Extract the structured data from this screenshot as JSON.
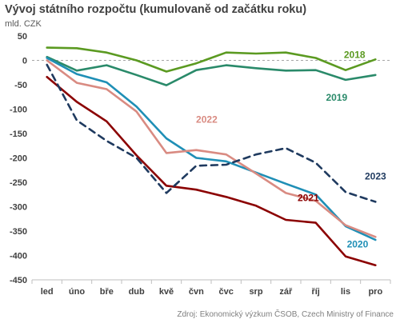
{
  "chart_data": {
    "type": "line",
    "title": "Vývoj státního rozpočtu (kumulovaně od začátku roku)",
    "subtitle": "mld. CZK",
    "source": "Zdroj: Ekonomický výzkum ČSOB, Czech Ministry of Finance",
    "categories": [
      "led",
      "úno",
      "bře",
      "dub",
      "kvě",
      "čvn",
      "čvc",
      "srp",
      "zář",
      "říj",
      "lis",
      "pro"
    ],
    "ylim": [
      -450,
      50
    ],
    "yticks": [
      50,
      0,
      -50,
      -100,
      -150,
      -200,
      -250,
      -300,
      -350,
      -400,
      -450
    ],
    "zero_line": "dashed",
    "grid": false,
    "series": [
      {
        "name": "2018",
        "color": "#5b9a21",
        "dash": "solid",
        "values": [
          26,
          25,
          16,
          0,
          -23,
          -6,
          16,
          14,
          16,
          5,
          -20,
          2
        ]
      },
      {
        "name": "2019",
        "color": "#2a8a6a",
        "dash": "solid",
        "values": [
          7,
          -21,
          -10,
          -30,
          -51,
          -20,
          -10,
          -16,
          -21,
          -20,
          -40,
          -30
        ]
      },
      {
        "name": "2020",
        "color": "#1f8fb6",
        "dash": "solid",
        "values": [
          5,
          -28,
          -45,
          -95,
          -160,
          -200,
          -207,
          -230,
          -253,
          -275,
          -340,
          -368
        ]
      },
      {
        "name": "2021",
        "color": "#8b0000",
        "dash": "solid",
        "values": [
          -34,
          -85,
          -125,
          -195,
          -257,
          -265,
          -280,
          -298,
          -327,
          -333,
          -402,
          -420
        ]
      },
      {
        "name": "2022",
        "color": "#d98b82",
        "dash": "solid",
        "values": [
          0,
          -46,
          -59,
          -105,
          -190,
          -184,
          -193,
          -232,
          -272,
          -288,
          -338,
          -362
        ]
      },
      {
        "name": "2023",
        "color": "#1f3a5f",
        "dash": "dashed",
        "values": [
          -9,
          -123,
          -165,
          -200,
          -272,
          -216,
          -214,
          -193,
          -180,
          -210,
          -270,
          -290
        ]
      }
    ]
  }
}
